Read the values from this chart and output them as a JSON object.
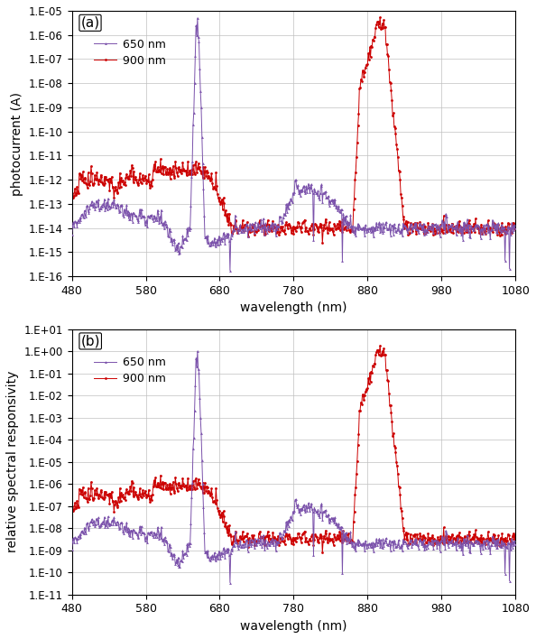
{
  "title_a": "(a)",
  "title_b": "(b)",
  "xlabel": "wavelength (nm)",
  "ylabel_a": "photocurrent (A)",
  "ylabel_b": "relative spectral responsivity",
  "legend_650": "650 nm",
  "legend_900": "900 nm",
  "color_650": "#7B52AB",
  "color_900": "#CC0000",
  "xlim": [
    480,
    1080
  ],
  "ylim_a": [
    1e-16,
    1e-05
  ],
  "ylim_b": [
    1e-11,
    10.0
  ],
  "yticks_a": [
    1e-16,
    1e-15,
    1e-14,
    1e-13,
    1e-12,
    1e-11,
    1e-10,
    1e-09,
    1e-08,
    1e-07,
    1e-06,
    1e-05
  ],
  "yticks_b": [
    1e-11,
    1e-10,
    1e-09,
    1e-08,
    1e-07,
    1e-06,
    1e-05,
    0.0001,
    0.001,
    0.01,
    0.1,
    1.0,
    10.0
  ],
  "yticklabels_a": [
    "1.E-16",
    "1.E-15",
    "1.E-14",
    "1.E-13",
    "1.E-12",
    "1.E-11",
    "1.E-10",
    "1.E-09",
    "1.E-08",
    "1.E-07",
    "1.E-06",
    "1.E-05"
  ],
  "yticklabels_b": [
    "1.E-11",
    "1.E-10",
    "1.E-09",
    "1.E-08",
    "1.E-07",
    "1.E-06",
    "1.E-05",
    "1.E-04",
    "1.E-03",
    "1.E-02",
    "1.E-01",
    "1.E+00",
    "1.E+01"
  ],
  "xticks": [
    480,
    580,
    680,
    780,
    880,
    980,
    1080
  ],
  "marker_650": "^",
  "marker_900": "o",
  "markersize": 2.0,
  "linewidth": 0.7,
  "figsize": [
    5.94,
    7.08
  ],
  "dpi": 100,
  "background_color": "#ffffff",
  "grid_color": "#c0c0c0"
}
